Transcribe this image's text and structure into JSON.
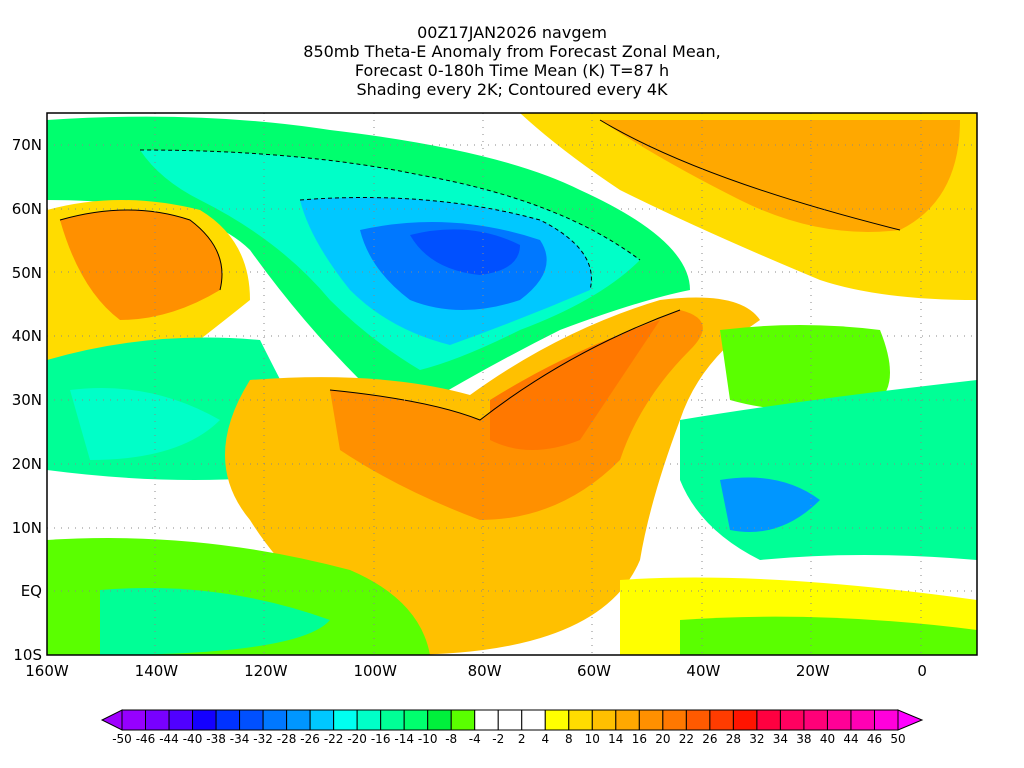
{
  "title_lines": [
    "00Z17JAN2026 navgem",
    "850mb Theta-E Anomaly from Forecast Zonal Mean,",
    "Forecast 0-180h Time Mean (K) T=87 h",
    "Shading every 2K; Contoured every 4K"
  ],
  "lat_ticks": [
    "70N",
    "60N",
    "50N",
    "40N",
    "30N",
    "20N",
    "10N",
    "EQ",
    "10S"
  ],
  "lon_ticks": [
    "160W",
    "140W",
    "120W",
    "100W",
    "80W",
    "60W",
    "40W",
    "20W",
    "0"
  ],
  "colorbar": {
    "labels": [
      "-50",
      "-46",
      "-44",
      "-40",
      "-38",
      "-34",
      "-32",
      "-28",
      "-26",
      "-22",
      "-20",
      "-16",
      "-14",
      "-10",
      "-8",
      "-4",
      "-2",
      "2",
      "4",
      "8",
      "10",
      "14",
      "16",
      "20",
      "22",
      "26",
      "28",
      "32",
      "34",
      "38",
      "40",
      "44",
      "46",
      "50"
    ],
    "colors": [
      "#9600ff",
      "#7800ff",
      "#5000ff",
      "#1400ff",
      "#0032ff",
      "#0050ff",
      "#0078ff",
      "#0096ff",
      "#00c8ff",
      "#00fff0",
      "#00ffc8",
      "#00ff96",
      "#00ff6e",
      "#00f03c",
      "#5aff00",
      "#ffffff",
      "#ffffff",
      "#ffffff",
      "#ffff00",
      "#ffdc00",
      "#ffc000",
      "#ffa800",
      "#ff9000",
      "#ff7800",
      "#ff5a00",
      "#ff3c00",
      "#ff1400",
      "#ff0040",
      "#ff0060",
      "#ff0078",
      "#ff0096",
      "#ff00b4",
      "#ff00dc"
    ],
    "under_color": "#a000ff",
    "over_color": "#ff00ff"
  }
}
